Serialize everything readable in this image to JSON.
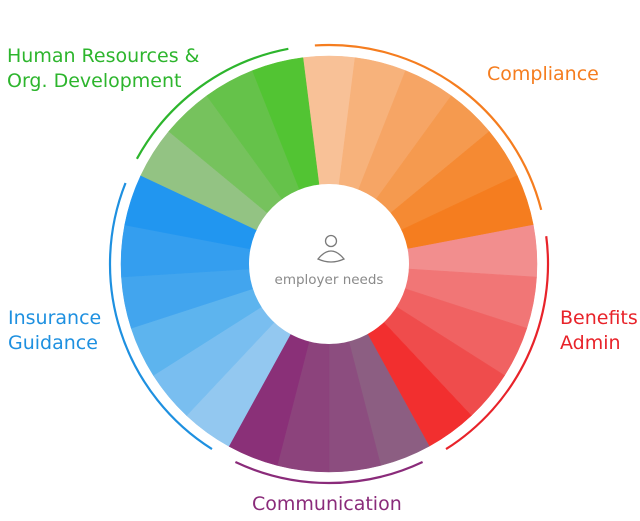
{
  "center": {
    "label": "employer needs",
    "icon": "person-icon"
  },
  "segments": [
    {
      "key": "compliance",
      "label": "Compliance",
      "color": "#f57d1f",
      "wedges": [
        "#f8c197",
        "#f7b27b",
        "#f6a565",
        "#f59a4f",
        "#f58a33",
        "#f57d1f"
      ]
    },
    {
      "key": "benefits",
      "label": "Benefits\nAdmin",
      "color": "#e8232a",
      "wedges": [
        "#f28e8e",
        "#f17676",
        "#f06262",
        "#ef4c4c",
        "#f22f2f"
      ]
    },
    {
      "key": "communication",
      "label": "Communication",
      "color": "#8a2b7a",
      "wedges": [
        "#8c5e82",
        "#8c4d7f",
        "#8c437c",
        "#8a3078"
      ]
    },
    {
      "key": "insurance",
      "label": "Insurance\nGuidance",
      "color": "#1e90e0",
      "wedges": [
        "#93c8f0",
        "#79bef0",
        "#5db4ee",
        "#42a5ee",
        "#349eef",
        "#2196f0"
      ]
    },
    {
      "key": "hr",
      "label": "Human Resources &\nOrg. Development",
      "color": "#2db52d",
      "wedges": [
        "#93c383",
        "#76c25d",
        "#65c24a",
        "#52c433"
      ]
    }
  ]
}
